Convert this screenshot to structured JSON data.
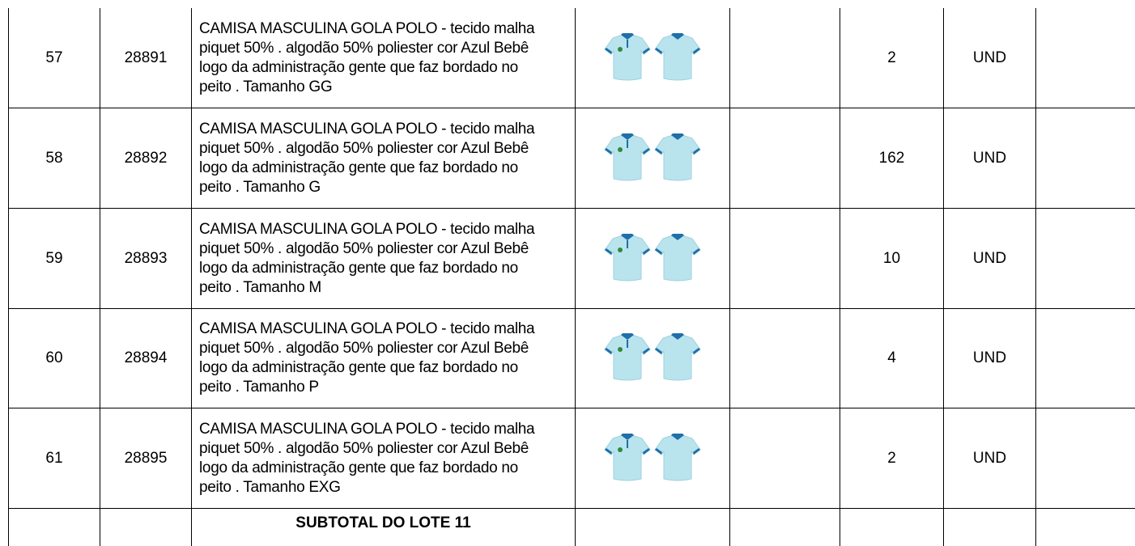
{
  "table": {
    "rows": [
      {
        "item": "57",
        "code": "28891",
        "description": "CAMISA MASCULINA GOLA POLO - tecido malha piquet 50% . algodão 50% poliester cor Azul Bebê logo da administração gente que faz bordado no peito . Tamanho GG",
        "quantity": "2",
        "unit": "UND"
      },
      {
        "item": "58",
        "code": "28892",
        "description": "CAMISA MASCULINA GOLA POLO - tecido malha piquet 50% . algodão 50% poliester cor Azul Bebê logo da administração gente que faz bordado no peito . Tamanho G",
        "quantity": "162",
        "unit": "UND"
      },
      {
        "item": "59",
        "code": "28893",
        "description": "CAMISA MASCULINA GOLA POLO - tecido malha piquet 50% . algodão 50% poliester cor Azul Bebê logo da administração gente que faz bordado no peito . Tamanho M",
        "quantity": "10",
        "unit": "UND"
      },
      {
        "item": "60",
        "code": "28894",
        "description": "CAMISA MASCULINA GOLA POLO - tecido malha piquet 50% . algodão 50% poliester cor Azul Bebê logo da administração gente que faz bordado no peito . Tamanho P",
        "quantity": "4",
        "unit": "UND"
      },
      {
        "item": "61",
        "code": "28895",
        "description": "CAMISA MASCULINA GOLA POLO - tecido malha piquet 50% . algodão 50% poliester cor Azul Bebê logo da administração gente que faz bordado no peito . Tamanho EXG",
        "quantity": "2",
        "unit": "UND"
      }
    ],
    "subtotal": "SUBTOTAL DO LOTE 11"
  }
}
